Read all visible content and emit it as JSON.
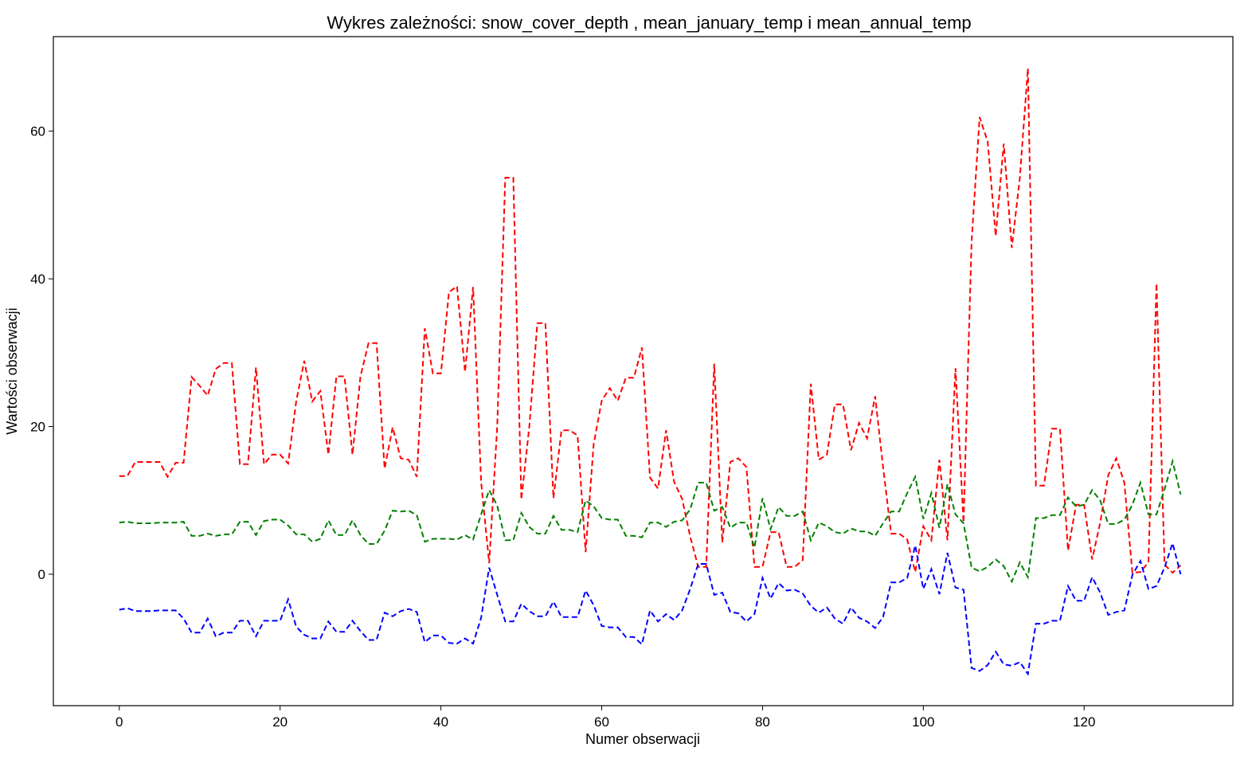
{
  "chart_data": {
    "type": "line",
    "title": "Wykres zależności: snow_cover_depth , mean_january_temp i mean_annual_temp",
    "xlabel": "Numer obserwacji",
    "ylabel": "Wartości obserwacji",
    "xlim": [
      -8.2,
      138.5
    ],
    "ylim": [
      -17.8,
      72.8
    ],
    "xticks": [
      0,
      20,
      40,
      60,
      80,
      100,
      120
    ],
    "yticks": [
      0,
      20,
      40,
      60
    ],
    "xtick_labels": [
      "0",
      "20",
      "40",
      "60",
      "80",
      "100",
      "120"
    ],
    "ytick_labels": [
      "0",
      "20",
      "40",
      "60"
    ],
    "grid": false,
    "line_style": "dashed",
    "series": [
      {
        "color": "#ff0000",
        "values": [
          13.3,
          13.3,
          15.2,
          15.2,
          15.2,
          15.2,
          13.2,
          15.1,
          15.1,
          26.7,
          25.5,
          24.2,
          27.8,
          28.6,
          28.6,
          14.9,
          14.9,
          28.0,
          14.9,
          16.2,
          16.2,
          15.0,
          23.4,
          28.9,
          23.4,
          24.8,
          16.2,
          26.8,
          26.8,
          16.2,
          26.8,
          31.3,
          31.3,
          14.3,
          19.9,
          15.7,
          15.5,
          13.2,
          33.3,
          27.2,
          27.2,
          38.2,
          39.0,
          27.4,
          38.9,
          12.5,
          1.5,
          20.0,
          53.7,
          53.7,
          10.1,
          20.0,
          34.0,
          34.0,
          10.3,
          19.5,
          19.5,
          18.8,
          3.0,
          17.6,
          23.5,
          25.2,
          23.5,
          26.6,
          26.6,
          30.7,
          13.1,
          11.6,
          19.5,
          12.5,
          10.2,
          5.1,
          1.0,
          1.0,
          28.5,
          4.3,
          15.2,
          15.7,
          14.5,
          1.0,
          1.0,
          5.7,
          5.7,
          1.0,
          1.0,
          1.9,
          25.8,
          15.5,
          16.2,
          23.0,
          23.0,
          16.8,
          20.5,
          18.4,
          24.1,
          14.5,
          5.5,
          5.5,
          4.7,
          0.3,
          6.5,
          4.6,
          15.5,
          4.6,
          27.9,
          7.0,
          45.0,
          61.9,
          58.6,
          45.8,
          58.3,
          44.2,
          53.7,
          68.5,
          12.0,
          12.0,
          19.7,
          19.7,
          3.2,
          9.4,
          9.4,
          2.0,
          7.0,
          13.4,
          15.7,
          12.4,
          0.2,
          0.3,
          1.6,
          39.4,
          1.3,
          0.2,
          1.2
        ]
      },
      {
        "color": "#008000",
        "values": [
          7.0,
          7.1,
          6.9,
          6.9,
          6.9,
          7.0,
          7.0,
          7.0,
          7.1,
          5.2,
          5.2,
          5.5,
          5.2,
          5.4,
          5.4,
          7.1,
          7.1,
          5.3,
          7.2,
          7.4,
          7.4,
          6.6,
          5.4,
          5.4,
          4.4,
          4.8,
          7.3,
          5.3,
          5.3,
          7.3,
          5.3,
          4.1,
          4.1,
          5.9,
          8.6,
          8.5,
          8.6,
          8.0,
          4.4,
          4.8,
          4.8,
          4.8,
          4.7,
          5.3,
          4.7,
          8.1,
          11.4,
          9.3,
          4.6,
          4.6,
          8.3,
          6.4,
          5.5,
          5.5,
          7.9,
          6.0,
          6.0,
          5.7,
          10.0,
          9.2,
          7.6,
          7.4,
          7.4,
          5.2,
          5.2,
          5.0,
          7.0,
          7.0,
          6.4,
          7.1,
          7.3,
          8.8,
          12.4,
          12.4,
          8.6,
          9.1,
          6.3,
          7.0,
          7.0,
          3.6,
          10.3,
          6.1,
          9.1,
          7.9,
          7.9,
          8.5,
          4.6,
          7.0,
          6.5,
          5.7,
          5.5,
          6.2,
          5.8,
          5.8,
          5.2,
          6.9,
          8.5,
          8.5,
          11.0,
          13.2,
          7.5,
          11.0,
          6.3,
          12.2,
          8.1,
          6.9,
          0.9,
          0.4,
          1.0,
          2.0,
          1.1,
          -1.0,
          1.6,
          -0.4,
          7.6,
          7.6,
          8.0,
          8.0,
          10.4,
          9.2,
          9.4,
          11.4,
          10.0,
          6.8,
          6.8,
          7.4,
          9.4,
          12.4,
          8.1,
          8.1,
          11.5,
          15.3,
          10.8
        ]
      },
      {
        "color": "#0000ff",
        "values": [
          -4.8,
          -4.6,
          -5.0,
          -5.0,
          -5.0,
          -4.9,
          -4.9,
          -4.9,
          -6.0,
          -7.9,
          -7.9,
          -6.0,
          -8.4,
          -7.9,
          -7.9,
          -6.3,
          -6.3,
          -8.4,
          -6.3,
          -6.3,
          -6.3,
          -3.4,
          -7.1,
          -8.2,
          -8.7,
          -8.7,
          -6.4,
          -7.8,
          -7.8,
          -6.3,
          -7.7,
          -8.9,
          -8.9,
          -5.2,
          -5.7,
          -5.0,
          -4.7,
          -5.1,
          -9.2,
          -8.3,
          -8.3,
          -9.3,
          -9.4,
          -8.7,
          -9.4,
          -5.9,
          0.9,
          -2.8,
          -6.4,
          -6.4,
          -4.0,
          -5.0,
          -5.7,
          -5.7,
          -3.7,
          -5.8,
          -5.8,
          -5.8,
          -2.2,
          -4.2,
          -7.0,
          -7.2,
          -7.2,
          -8.5,
          -8.5,
          -9.5,
          -4.9,
          -6.4,
          -5.4,
          -6.2,
          -4.9,
          -2.0,
          1.4,
          1.4,
          -2.8,
          -2.5,
          -5.1,
          -5.3,
          -6.4,
          -5.4,
          -0.5,
          -3.3,
          -1.2,
          -2.2,
          -2.1,
          -2.6,
          -4.3,
          -5.2,
          -4.5,
          -6.0,
          -6.7,
          -4.5,
          -5.9,
          -6.4,
          -7.3,
          -5.8,
          -1.1,
          -1.1,
          -0.5,
          3.9,
          -2.0,
          0.7,
          -2.7,
          2.9,
          -1.8,
          -2.1,
          -12.7,
          -13.1,
          -12.3,
          -10.5,
          -12.2,
          -12.4,
          -11.9,
          -13.5,
          -6.7,
          -6.7,
          -6.3,
          -6.3,
          -1.6,
          -3.6,
          -3.6,
          -0.4,
          -2.5,
          -5.5,
          -5.1,
          -4.9,
          -0.1,
          1.8,
          -2.0,
          -1.6,
          0.9,
          4.2,
          0.0
        ]
      }
    ]
  }
}
